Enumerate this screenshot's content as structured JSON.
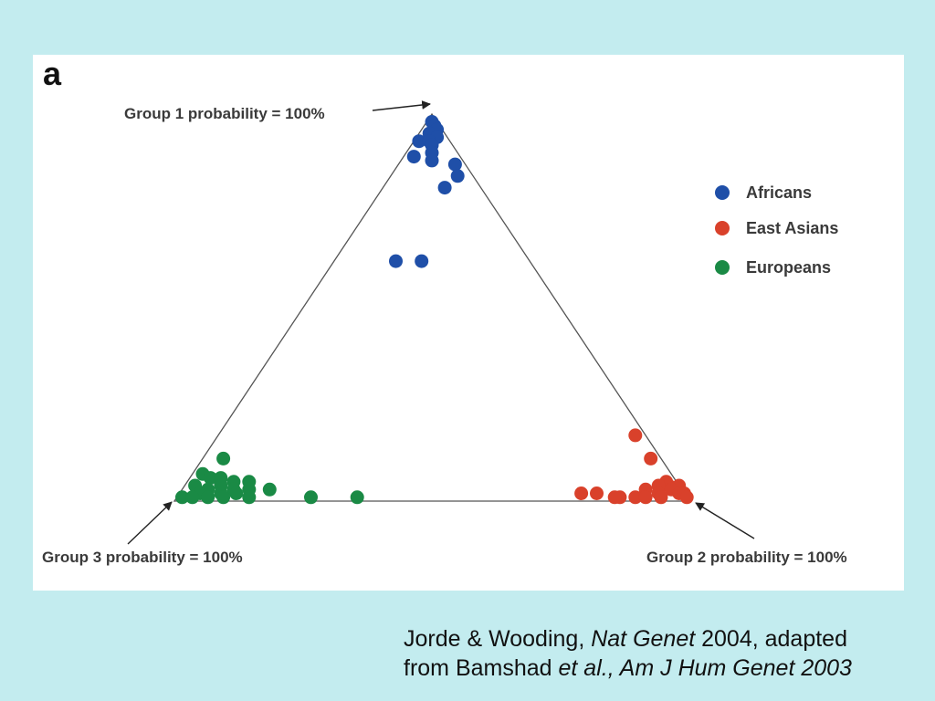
{
  "panel_label": "a",
  "citation": {
    "line1_author": "Jorde & Wooding, ",
    "line1_journal": "Nat Genet",
    "line1_tail": " 2004, adapted",
    "line2_prefix": "from Bamshad ",
    "line2_italic": "et al., Am J Hum Genet 2003"
  },
  "chart_data": {
    "type": "scatter",
    "coordinate_system": "ternary (group membership probabilities)",
    "vertices": {
      "top": "Group 1 probability = 100%",
      "bottom_right": "Group 2 probability = 100%",
      "bottom_left": "Group 3 probability = 100%"
    },
    "legend_position": "right",
    "series": [
      {
        "name": "Africans",
        "color": "#1f4fa8",
        "points": [
          {
            "g1": 0.98,
            "g2": 0.01
          },
          {
            "g1": 0.97,
            "g2": 0.02
          },
          {
            "g1": 0.96,
            "g2": 0.03
          },
          {
            "g1": 0.95,
            "g2": 0.02
          },
          {
            "g1": 0.94,
            "g2": 0.04
          },
          {
            "g1": 0.93,
            "g2": 0.01
          },
          {
            "g1": 0.93,
            "g2": 0.03
          },
          {
            "g1": 0.92,
            "g2": 0.04
          },
          {
            "g1": 0.9,
            "g2": 0.05
          },
          {
            "g1": 0.89,
            "g2": 0.02
          },
          {
            "g1": 0.88,
            "g2": 0.06
          },
          {
            "g1": 0.87,
            "g2": 0.11
          },
          {
            "g1": 0.84,
            "g2": 0.13
          },
          {
            "g1": 0.81,
            "g2": 0.12
          },
          {
            "g1": 0.62,
            "g2": 0.12
          },
          {
            "g1": 0.62,
            "g2": 0.17
          }
        ]
      },
      {
        "name": "East Asians",
        "color": "#d9412b",
        "points": [
          {
            "g1": 0.17,
            "g2": 0.81
          },
          {
            "g1": 0.11,
            "g2": 0.87
          },
          {
            "g1": 0.05,
            "g2": 0.93
          },
          {
            "g1": 0.04,
            "g2": 0.94
          },
          {
            "g1": 0.04,
            "g2": 0.92
          },
          {
            "g1": 0.04,
            "g2": 0.96
          },
          {
            "g1": 0.03,
            "g2": 0.9
          },
          {
            "g1": 0.03,
            "g2": 0.95
          },
          {
            "g1": 0.02,
            "g2": 0.93
          },
          {
            "g1": 0.02,
            "g2": 0.97
          },
          {
            "g1": 0.02,
            "g2": 0.98
          },
          {
            "g1": 0.01,
            "g2": 0.86
          },
          {
            "g1": 0.01,
            "g2": 0.89
          },
          {
            "g1": 0.01,
            "g2": 0.91
          },
          {
            "g1": 0.01,
            "g2": 0.94
          },
          {
            "g1": 0.01,
            "g2": 0.99
          },
          {
            "g1": 0.02,
            "g2": 0.78
          },
          {
            "g1": 0.02,
            "g2": 0.81
          },
          {
            "g1": 0.01,
            "g2": 0.85
          }
        ]
      },
      {
        "name": "Europeans",
        "color": "#1a8a45",
        "points": [
          {
            "g1": 0.11,
            "g2": 0.04
          },
          {
            "g1": 0.07,
            "g2": 0.02
          },
          {
            "g1": 0.06,
            "g2": 0.04
          },
          {
            "g1": 0.06,
            "g2": 0.06
          },
          {
            "g1": 0.05,
            "g2": 0.09
          },
          {
            "g1": 0.05,
            "g2": 0.12
          },
          {
            "g1": 0.04,
            "g2": 0.02
          },
          {
            "g1": 0.04,
            "g2": 0.07
          },
          {
            "g1": 0.03,
            "g2": 0.05
          },
          {
            "g1": 0.03,
            "g2": 0.1
          },
          {
            "g1": 0.03,
            "g2": 0.13
          },
          {
            "g1": 0.03,
            "g2": 0.17
          },
          {
            "g1": 0.02,
            "g2": 0.04
          },
          {
            "g1": 0.02,
            "g2": 0.08
          },
          {
            "g1": 0.02,
            "g2": 0.11
          },
          {
            "g1": 0.01,
            "g2": 0.01
          },
          {
            "g1": 0.01,
            "g2": 0.03
          },
          {
            "g1": 0.01,
            "g2": 0.06
          },
          {
            "g1": 0.01,
            "g2": 0.09
          },
          {
            "g1": 0.01,
            "g2": 0.14
          },
          {
            "g1": 0.01,
            "g2": 0.26
          },
          {
            "g1": 0.01,
            "g2": 0.35
          }
        ]
      }
    ]
  }
}
